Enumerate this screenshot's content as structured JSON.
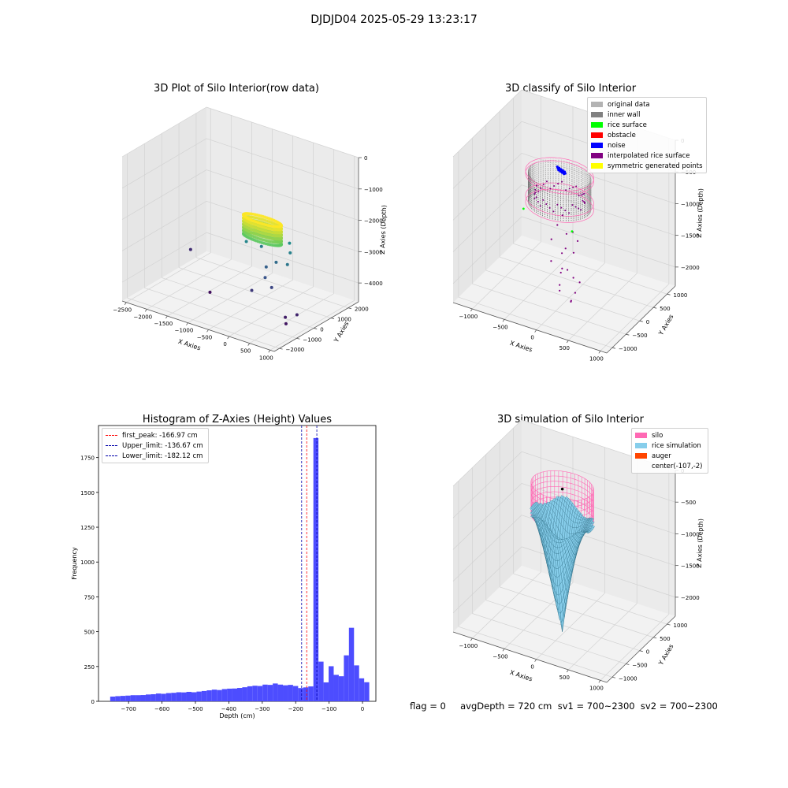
{
  "figure": {
    "title": "DJDJD04 2025-05-29 13:23:17"
  },
  "status": {
    "text": "flag = 0     avgDepth = 720 cm  sv1 = 700~2300  sv2 = 700~2300"
  },
  "chart_data": [
    {
      "type": "scatter3d",
      "title": "3D Plot of Silo Interior(row data)",
      "xlabel": "X Axies",
      "ylabel": "Y Axies",
      "zlabel": "Z Axies (Depth)",
      "x_ticks": [
        -2500,
        -2000,
        -1500,
        -1000,
        -500,
        0,
        500,
        1000
      ],
      "y_ticks": [
        -2000,
        -1000,
        0,
        1000,
        2000
      ],
      "z_ticks": [
        0,
        -1000,
        -2000,
        -3000,
        -4000
      ],
      "xlim": [
        -2600,
        1100
      ],
      "ylim": [
        -2300,
        2600
      ],
      "zlim": [
        -4600,
        0
      ],
      "colormap": "viridis",
      "grid": true,
      "ring": {
        "center": [
          -150,
          0
        ],
        "radius": 450,
        "z_range": [
          -2300,
          -1700
        ]
      },
      "points": [
        [
          -2400,
          1200,
          -4000
        ],
        [
          -1300,
          -300,
          -4400
        ],
        [
          700,
          -700,
          -4200
        ],
        [
          800,
          -900,
          -4300
        ],
        [
          900,
          -500,
          -4100
        ],
        [
          -100,
          100,
          -3200
        ],
        [
          0,
          -200,
          -3400
        ],
        [
          100,
          200,
          -3000
        ],
        [
          -300,
          300,
          -2700
        ],
        [
          200,
          -300,
          -3600
        ],
        [
          400,
          300,
          -2600
        ],
        [
          -500,
          -100,
          -2500
        ],
        [
          300,
          500,
          -2400
        ],
        [
          -200,
          -500,
          -3800
        ],
        [
          500,
          -100,
          -2800
        ]
      ]
    },
    {
      "type": "scatter3d",
      "title": "3D classify of Silo Interior",
      "xlabel": "X Axies",
      "ylabel": "Y Axies",
      "zlabel": "Z Axies (Depth)",
      "x_ticks": [
        -1000,
        -500,
        0,
        500,
        1000
      ],
      "y_ticks": [
        -1000,
        -500,
        0,
        500,
        1000
      ],
      "z_ticks": [
        0,
        -500,
        -1000,
        -1500,
        -2000
      ],
      "xlim": [
        -1300,
        1100
      ],
      "ylim": [
        -1200,
        1300
      ],
      "zlim": [
        -2300,
        0
      ],
      "grid": true,
      "legend": {
        "position": "top-right",
        "entries": [
          {
            "label": "original data",
            "color": "#b3b3b3"
          },
          {
            "label": "inner wall",
            "color": "#808080"
          },
          {
            "label": "rice surface",
            "color": "#00ff00"
          },
          {
            "label": "obstacle",
            "color": "#ff0000"
          },
          {
            "label": "noise",
            "color": "#0000ff"
          },
          {
            "label": "interpolated rice surface",
            "color": "#800080"
          },
          {
            "label": "symmetric generated points",
            "color": "#ffff00"
          }
        ]
      },
      "cylinder": {
        "center": [
          -150,
          0
        ],
        "radius": 450,
        "z_range": [
          -900,
          -400
        ]
      }
    },
    {
      "type": "bar",
      "title": "Histogram of Z-Axies (Height) Values",
      "xlabel": "Depth (cm)",
      "ylabel": "Frequency",
      "xlim": [
        -790,
        40
      ],
      "ylim": [
        0,
        1980
      ],
      "x_ticks": [
        -700,
        -600,
        -500,
        -400,
        -300,
        -200,
        -100,
        0
      ],
      "y_ticks": [
        0,
        250,
        500,
        750,
        1000,
        1250,
        1500,
        1750
      ],
      "bar_color": "#4d4dff",
      "bin_width": 15.2,
      "bin_start": -755,
      "values": [
        34,
        37,
        39,
        41,
        44,
        44,
        45,
        49,
        51,
        56,
        54,
        59,
        61,
        65,
        64,
        68,
        65,
        70,
        74,
        79,
        84,
        81,
        88,
        91,
        92,
        96,
        101,
        108,
        112,
        110,
        120,
        118,
        128,
        120,
        115,
        118,
        110,
        95,
        100,
        107,
        1890,
        285,
        136,
        252,
        190,
        180,
        330,
        528,
        258,
        165,
        137
      ],
      "vlines": [
        {
          "label": "first_peak: -166.97 cm",
          "x": -166.97,
          "color": "#ff0000"
        },
        {
          "label": "Upper_limit: -136.67 cm",
          "x": -136.67,
          "color": "#0000aa"
        },
        {
          "label": "Lower_limit: -182.12 cm",
          "x": -182.12,
          "color": "#0000aa"
        }
      ],
      "legend": {
        "position": "top-left"
      }
    },
    {
      "type": "surface3d",
      "title": "3D simulation of Silo Interior",
      "xlabel": "X Axies",
      "ylabel": "Y Axies",
      "zlabel": "Z Axies (Depth)",
      "x_ticks": [
        -1000,
        -500,
        0,
        500,
        1000
      ],
      "y_ticks": [
        -1000,
        -500,
        0,
        500,
        1000
      ],
      "z_ticks": [
        0,
        -500,
        -1000,
        -1500,
        -2000
      ],
      "xlim": [
        -1300,
        1100
      ],
      "ylim": [
        -1200,
        1300
      ],
      "zlim": [
        -2300,
        0
      ],
      "grid": true,
      "legend": {
        "position": "top-right",
        "entries": [
          {
            "label": "silo",
            "color": "#ff69b4"
          },
          {
            "label": "rice simulation",
            "color": "#87ceeb"
          },
          {
            "label": "auger",
            "color": "#ff4500"
          },
          {
            "label": "center(-107,-2)",
            "color": "none"
          }
        ]
      },
      "cylinder": {
        "center": [
          -107,
          -2
        ],
        "radius": 450,
        "z_range": [
          -600,
          -100
        ]
      }
    }
  ]
}
